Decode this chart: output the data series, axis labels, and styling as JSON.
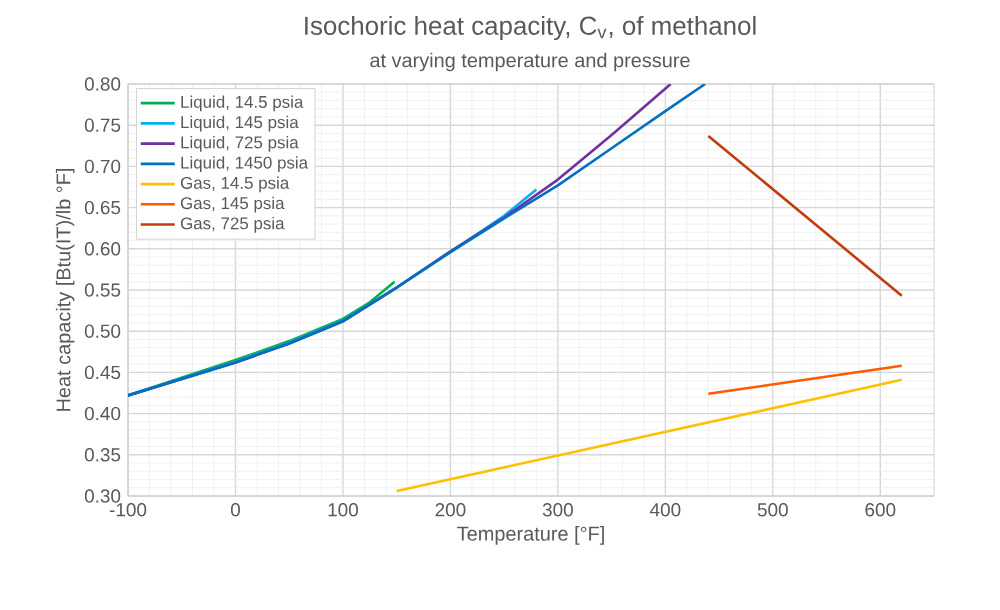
{
  "chart_data": {
    "type": "line",
    "title": "Isochoric heat capacity, C$_{v}$, of methanol",
    "subtitle": "at varying temperature and pressure",
    "xlabel": "Temperature [°F]",
    "ylabel": "Heat capacity  [Btu(IT)/lb °F]",
    "xlim": [
      -100,
      650
    ],
    "xticks": [
      -100,
      0,
      100,
      200,
      300,
      400,
      500,
      600
    ],
    "ylim": [
      0.3,
      0.8
    ],
    "yticks": [
      {
        "value": 0.3,
        "label": "0.30"
      },
      {
        "value": 0.35,
        "label": "0.35"
      },
      {
        "value": 0.4,
        "label": "0.40"
      },
      {
        "value": 0.45,
        "label": "0.45"
      },
      {
        "value": 0.5,
        "label": "0.50"
      },
      {
        "value": 0.55,
        "label": "0.55"
      },
      {
        "value": 0.6,
        "label": "0.60"
      },
      {
        "value": 0.65,
        "label": "0.65"
      },
      {
        "value": 0.7,
        "label": "0.70"
      },
      {
        "value": 0.75,
        "label": "0.75"
      },
      {
        "value": 0.8,
        "label": "0.80"
      }
    ],
    "grid": true,
    "legend": "top left",
    "marker": "none",
    "series": [
      {
        "name": "Liquid, 14.5 psia",
        "color": "#00b050",
        "x": [
          -100,
          0,
          50,
          100,
          125,
          148
        ],
        "values": [
          0.422,
          0.465,
          0.488,
          0.515,
          0.535,
          0.56
        ]
      },
      {
        "name": "Liquid, 145 psia",
        "color": "#00b0f0",
        "x": [
          -100,
          0,
          50,
          100,
          150,
          200,
          250,
          280
        ],
        "values": [
          0.422,
          0.463,
          0.486,
          0.513,
          0.553,
          0.596,
          0.64,
          0.672
        ]
      },
      {
        "name": "Liquid, 725 psia",
        "color": "#7030a0",
        "x": [
          -100,
          0,
          50,
          100,
          150,
          200,
          250,
          300,
          350,
          405
        ],
        "values": [
          0.422,
          0.462,
          0.485,
          0.512,
          0.553,
          0.597,
          0.638,
          0.684,
          0.738,
          0.8
        ]
      },
      {
        "name": "Liquid, 1450 psia",
        "color": "#0070c0",
        "x": [
          -100,
          0,
          50,
          100,
          150,
          200,
          250,
          300,
          350,
          400,
          437
        ],
        "values": [
          0.422,
          0.462,
          0.485,
          0.512,
          0.553,
          0.596,
          0.637,
          0.677,
          0.722,
          0.767,
          0.8
        ]
      },
      {
        "name": "Gas, 14.5 psia",
        "color": "#ffc000",
        "x": [
          150,
          620
        ],
        "values": [
          0.306,
          0.441
        ]
      },
      {
        "name": "Gas, 145 psia",
        "color": "#ff5a00",
        "x": [
          440,
          620
        ],
        "values": [
          0.424,
          0.458
        ]
      },
      {
        "name": "Gas, 725 psia",
        "color": "#c03c0c",
        "x": [
          440,
          620
        ],
        "values": [
          0.737,
          0.543
        ]
      }
    ]
  }
}
